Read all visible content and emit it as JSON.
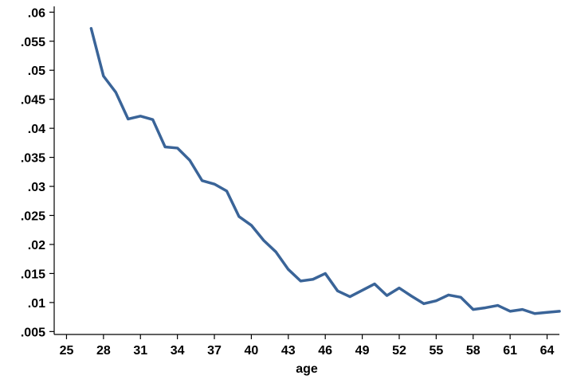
{
  "colors": {
    "series": "#3a6498",
    "axis": "#000000"
  },
  "chart_data": {
    "type": "line",
    "title": "",
    "xlabel": "age",
    "ylabel": "",
    "xlim": [
      24,
      65
    ],
    "ylim": [
      0.0045,
      0.061
    ],
    "xticks": [
      25,
      28,
      31,
      34,
      37,
      40,
      43,
      46,
      49,
      52,
      55,
      58,
      61,
      64
    ],
    "xtick_labels": [
      "25",
      "28",
      "31",
      "34",
      "37",
      "40",
      "43",
      "46",
      "49",
      "52",
      "55",
      "58",
      "61",
      "64"
    ],
    "yticks": [
      0.005,
      0.01,
      0.015,
      0.02,
      0.025,
      0.03,
      0.035,
      0.04,
      0.045,
      0.05,
      0.055,
      0.06
    ],
    "ytick_labels": [
      ".005",
      ".01",
      ".015",
      ".02",
      ".025",
      ".03",
      ".035",
      ".04",
      ".045",
      ".05",
      ".055",
      ".06"
    ],
    "grid": false,
    "legend": "none",
    "series": [
      {
        "x": [
          27,
          28,
          29,
          30,
          31,
          32,
          33,
          34,
          35,
          36,
          37,
          38,
          39,
          40,
          41,
          42,
          43,
          44,
          45,
          46,
          47,
          48,
          49,
          50,
          51,
          52,
          53,
          54,
          55,
          56,
          57,
          58,
          59,
          60,
          61,
          62,
          63,
          64,
          65
        ],
        "values": [
          0.0572,
          0.049,
          0.0462,
          0.0416,
          0.0421,
          0.0415,
          0.0368,
          0.0366,
          0.0345,
          0.031,
          0.0304,
          0.0292,
          0.0248,
          0.0233,
          0.0207,
          0.0187,
          0.0157,
          0.0137,
          0.014,
          0.015,
          0.012,
          0.011,
          0.0121,
          0.0132,
          0.0112,
          0.0125,
          0.0111,
          0.0098,
          0.0103,
          0.0113,
          0.0109,
          0.0088,
          0.0091,
          0.0095,
          0.0085,
          0.0088,
          0.0081,
          0.0083,
          0.0085
        ]
      }
    ]
  }
}
